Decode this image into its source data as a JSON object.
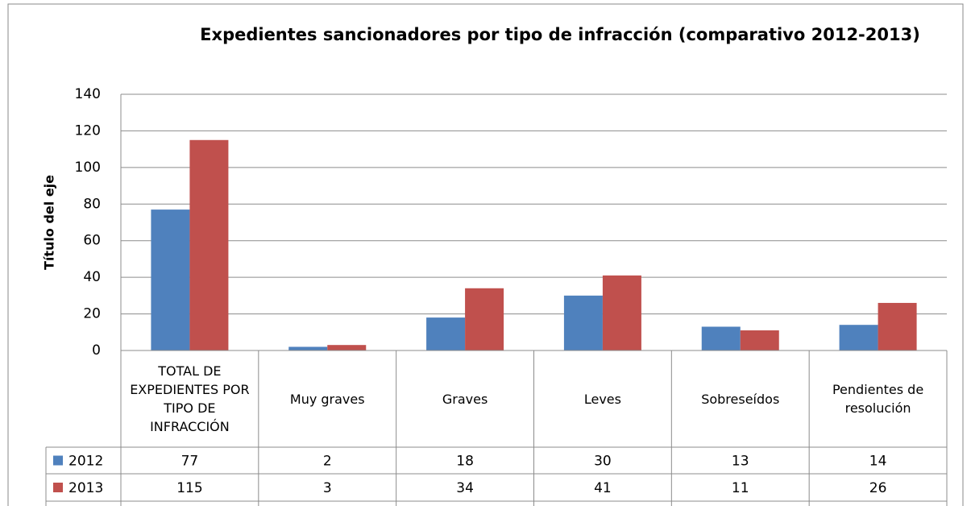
{
  "chart_data": {
    "type": "bar",
    "title": "Expedientes sancionadores por tipo de infracción (comparativo 2012-2013)",
    "y_axis_label": "Título del eje",
    "categories": [
      "TOTAL DE EXPEDIENTES POR TIPO DE INFRACCIÓN",
      "Muy graves",
      "Graves",
      "Leves",
      "Sobreseídos",
      "Pendientes de resolución"
    ],
    "series": [
      {
        "name": "2012",
        "color": "#4f81bd",
        "values": [
          77,
          2,
          18,
          30,
          13,
          14
        ]
      },
      {
        "name": "2013",
        "color": "#c0504d",
        "values": [
          115,
          3,
          34,
          41,
          11,
          26
        ]
      }
    ],
    "ylim": [
      0,
      140
    ],
    "yticks": [
      0,
      20,
      40,
      60,
      80,
      100,
      120,
      140
    ],
    "grid": true,
    "data_table": true
  }
}
